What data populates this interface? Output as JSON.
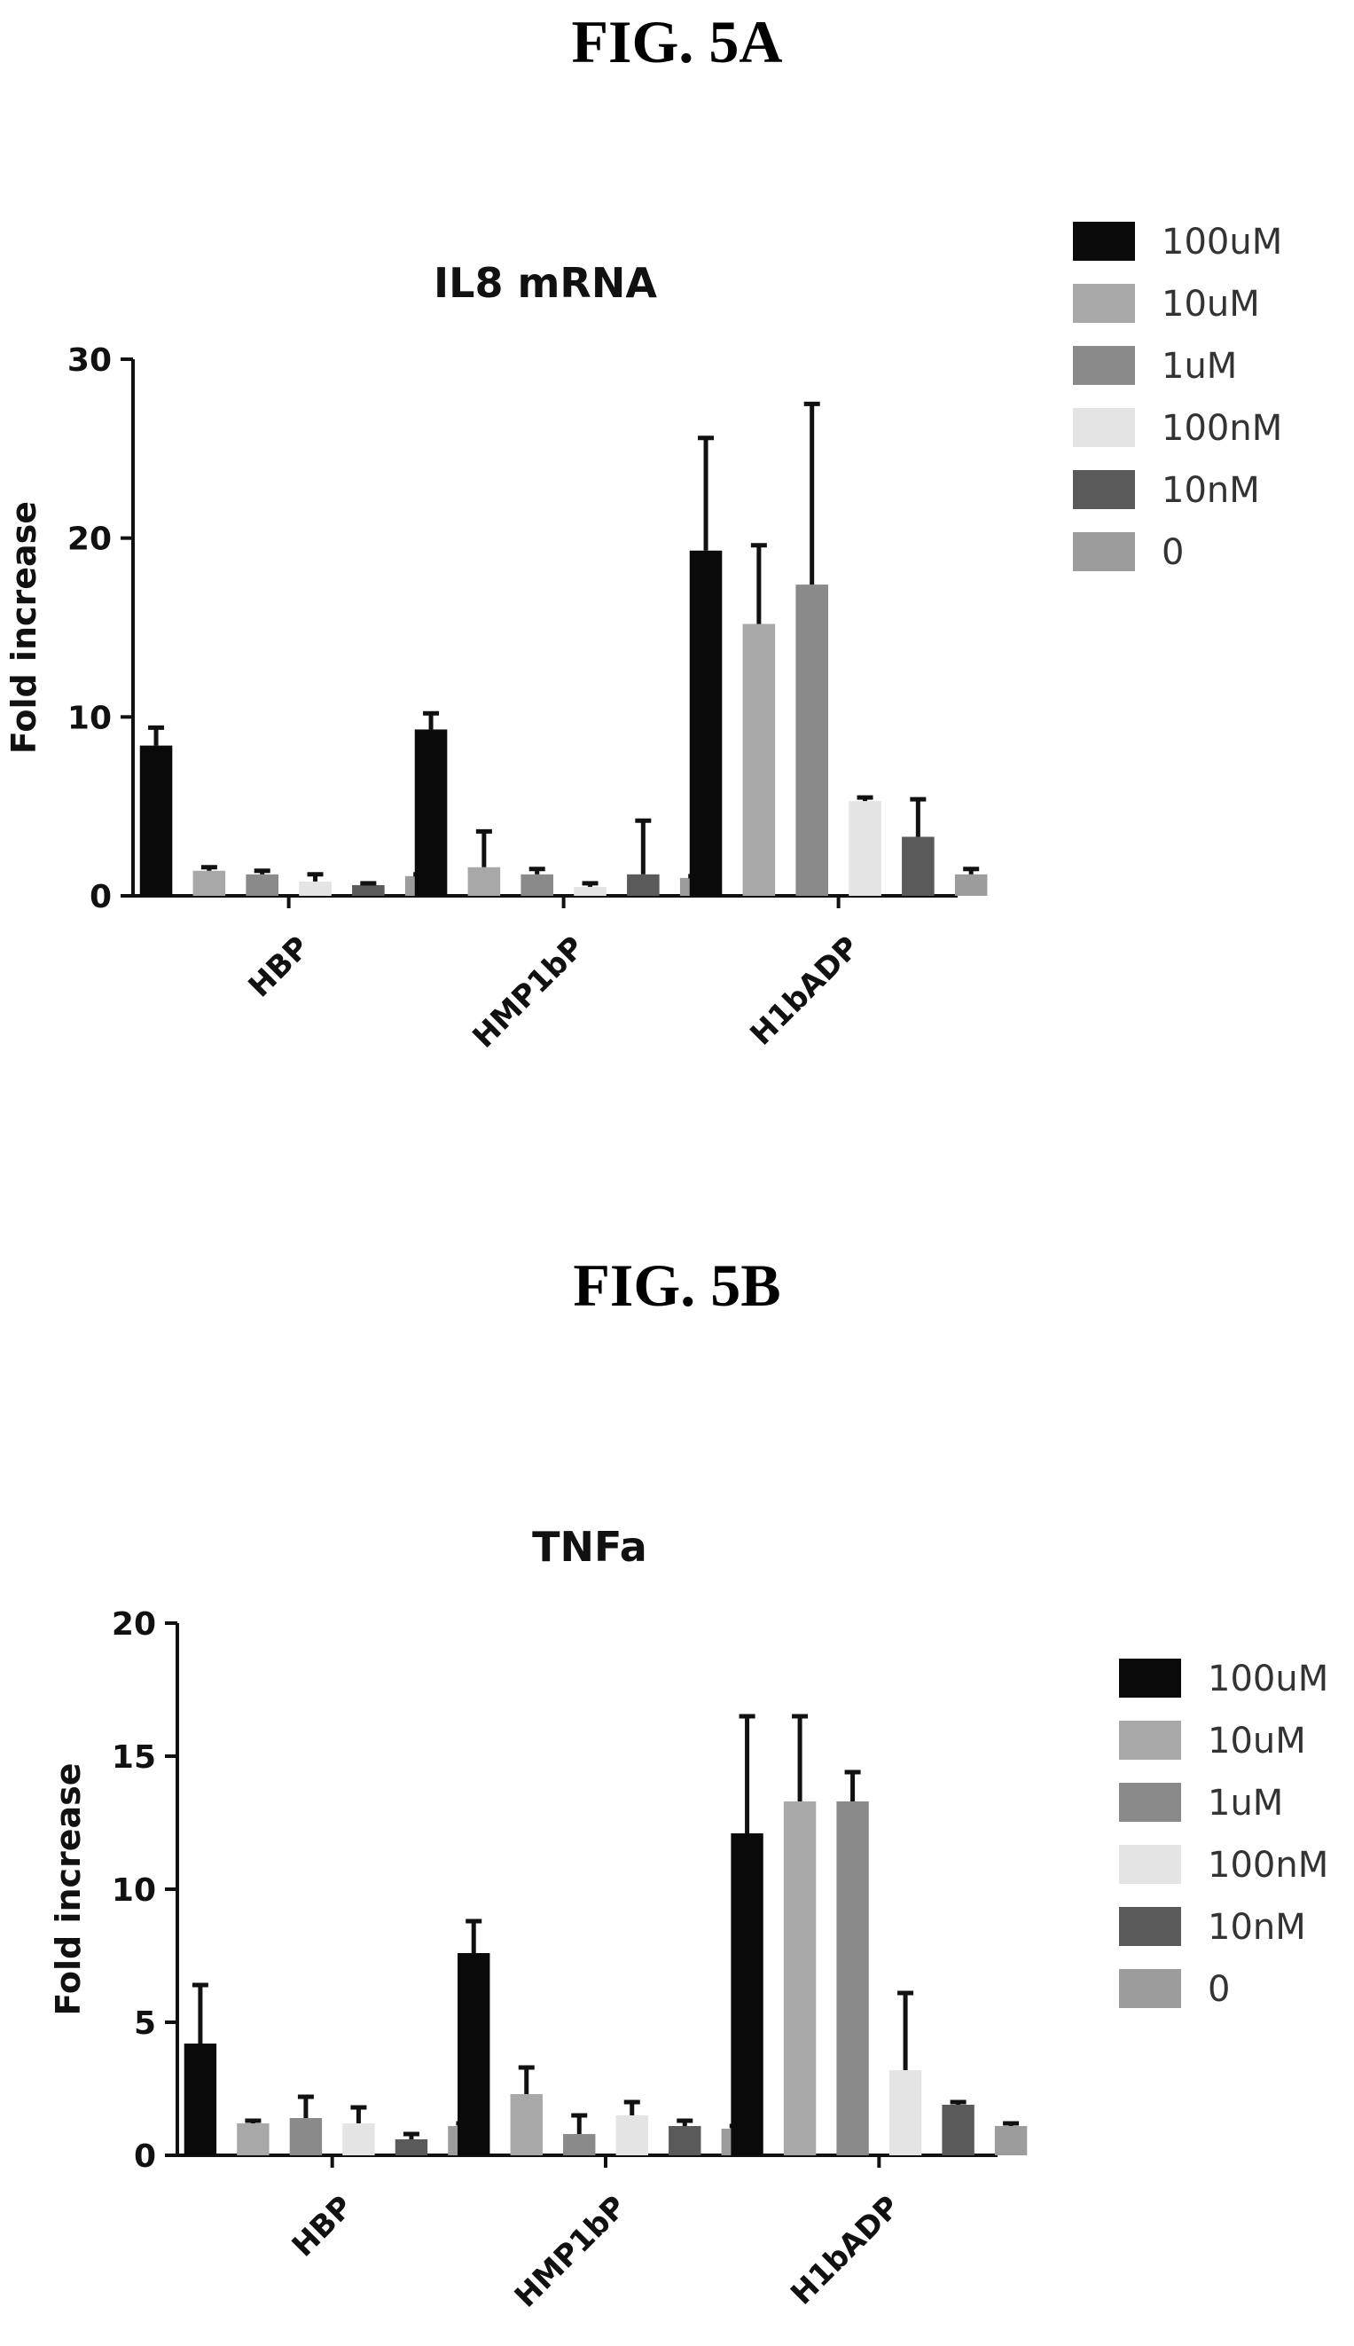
{
  "figures": [
    {
      "label": "FIG. 5A"
    },
    {
      "label": "FIG. 5B"
    }
  ],
  "colors": {
    "100uM": "#0a0a0a",
    "10uM": "#a8a8a8",
    "1uM": "#8a8a8a",
    "100nM": "#e4e4e4",
    "10nM": "#5a5a5a",
    "0": "#9c9c9c"
  },
  "chart_data": [
    {
      "type": "bar",
      "title": "IL8 mRNA",
      "xlabel": "",
      "ylabel": "Fold increase",
      "ylim": [
        0,
        30
      ],
      "yticks": [
        0,
        10,
        20,
        30
      ],
      "categories": [
        "HBP",
        "HMP1bP",
        "H1bADP"
      ],
      "legend_position": "right",
      "series": [
        {
          "name": "100uM",
          "values": [
            8.4,
            9.3,
            19.3
          ],
          "errors": [
            1.0,
            0.9,
            6.3
          ]
        },
        {
          "name": "10uM",
          "values": [
            1.4,
            1.6,
            15.2
          ],
          "errors": [
            0.2,
            2.0,
            4.4
          ]
        },
        {
          "name": "1uM",
          "values": [
            1.2,
            1.2,
            17.4
          ],
          "errors": [
            0.2,
            0.3,
            10.1
          ]
        },
        {
          "name": "100nM",
          "values": [
            0.8,
            0.5,
            5.3
          ],
          "errors": [
            0.4,
            0.2,
            0.2
          ]
        },
        {
          "name": "10nM",
          "values": [
            0.6,
            1.2,
            3.3
          ],
          "errors": [
            0.1,
            3.0,
            2.1
          ]
        },
        {
          "name": "0",
          "values": [
            1.1,
            1.0,
            1.2
          ],
          "errors": [
            0.1,
            0.1,
            0.3
          ]
        }
      ]
    },
    {
      "type": "bar",
      "title": "TNFa",
      "xlabel": "",
      "ylabel": "Fold increase",
      "ylim": [
        0,
        20
      ],
      "yticks": [
        0,
        5,
        10,
        15,
        20
      ],
      "categories": [
        "HBP",
        "HMP1bP",
        "H1bADP"
      ],
      "legend_position": "right",
      "series": [
        {
          "name": "100uM",
          "values": [
            4.2,
            7.6,
            12.1
          ],
          "errors": [
            2.2,
            1.2,
            4.4
          ]
        },
        {
          "name": "10uM",
          "values": [
            1.2,
            2.3,
            13.3
          ],
          "errors": [
            0.1,
            1.0,
            3.2
          ]
        },
        {
          "name": "1uM",
          "values": [
            1.4,
            0.8,
            13.3
          ],
          "errors": [
            0.8,
            0.7,
            1.1
          ]
        },
        {
          "name": "100nM",
          "values": [
            1.2,
            1.5,
            3.2
          ],
          "errors": [
            0.6,
            0.5,
            2.9
          ]
        },
        {
          "name": "10nM",
          "values": [
            0.6,
            1.1,
            1.9
          ],
          "errors": [
            0.2,
            0.2,
            0.1
          ]
        },
        {
          "name": "0",
          "values": [
            1.1,
            1.0,
            1.1
          ],
          "errors": [
            0.1,
            0.1,
            0.1
          ]
        }
      ]
    }
  ]
}
